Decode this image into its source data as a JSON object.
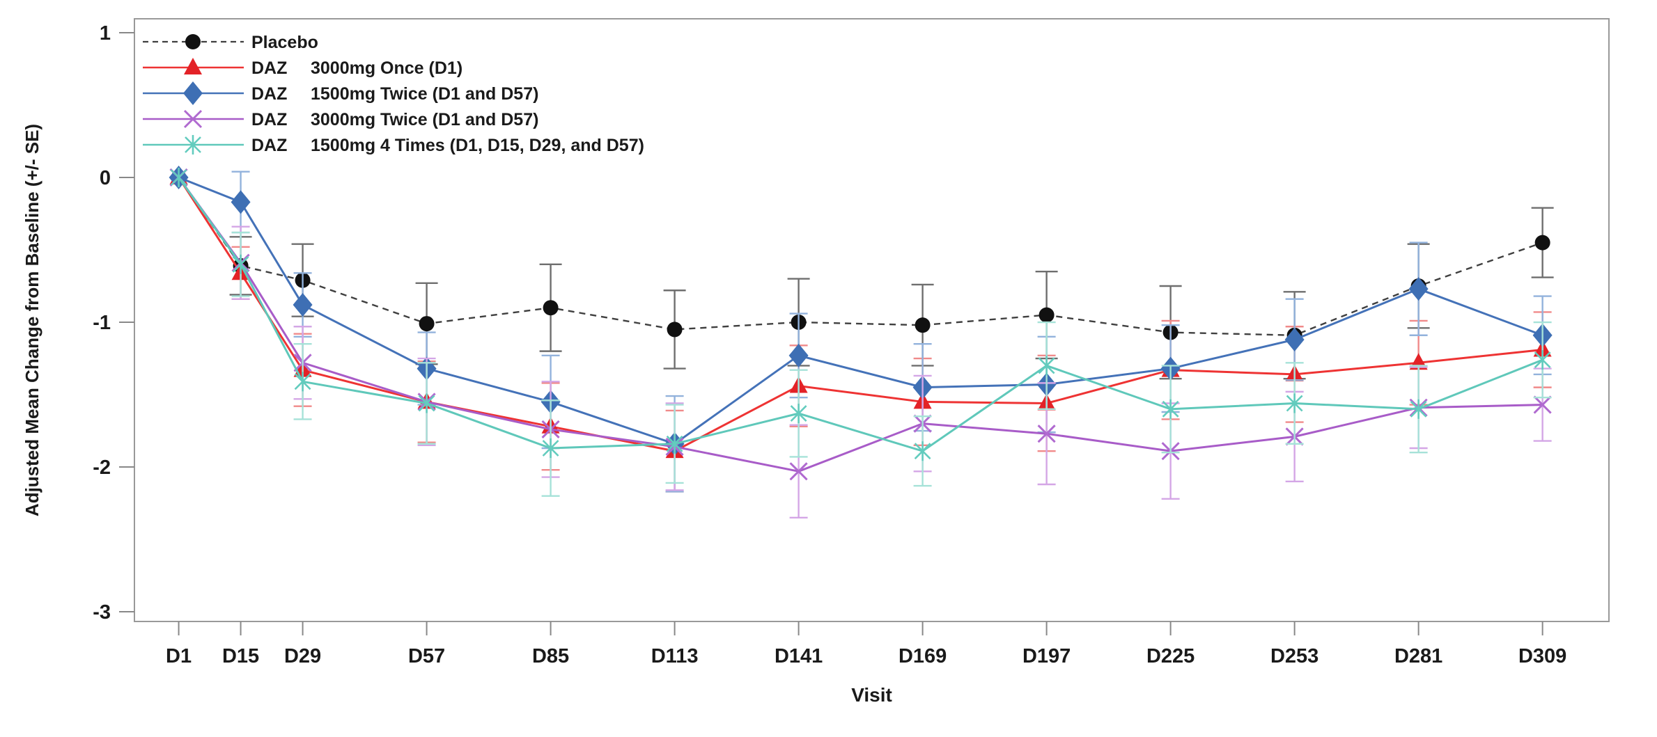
{
  "chart_data": {
    "type": "line",
    "title": "",
    "xlabel": "Visit",
    "ylabel": "Adjusted Mean Change from Baseline (+/- SE)",
    "error_bars": "+/- SE",
    "grid": false,
    "legend_position": "top-left-inside",
    "x_categories": [
      "D1",
      "D15",
      "D29",
      "D57",
      "D85",
      "D113",
      "D141",
      "D169",
      "D197",
      "D225",
      "D253",
      "D281",
      "D309"
    ],
    "x_days": [
      1,
      15,
      29,
      57,
      85,
      113,
      141,
      169,
      197,
      225,
      253,
      281,
      309
    ],
    "yticks": [
      1,
      0,
      -1,
      -2,
      -3
    ],
    "ylim": [
      -3.07,
      1.1
    ],
    "series": [
      {
        "name": "Placebo",
        "legend_col1": "Placebo",
        "legend_col2": "",
        "marker": "circle",
        "line_style": "dashed",
        "line_color": "#3f3f3f",
        "marker_color": "#111111",
        "error_color": "#6e6e6e",
        "values": [
          0.0,
          -0.61,
          -0.71,
          -1.01,
          -0.9,
          -1.05,
          -1.0,
          -1.02,
          -0.95,
          -1.07,
          -1.09,
          -0.75,
          -0.45
        ],
        "se": [
          0.0,
          0.2,
          0.25,
          0.28,
          0.3,
          0.27,
          0.3,
          0.28,
          0.3,
          0.32,
          0.3,
          0.29,
          0.24
        ]
      },
      {
        "name": "DAZ 3000mg Once (D1)",
        "legend_col1": "DAZ",
        "legend_col2": "3000mg Once (D1)",
        "marker": "triangle",
        "line_style": "solid",
        "line_color": "#ee3333",
        "marker_color": "#e32227",
        "error_color": "#f08a8a",
        "values": [
          0.0,
          -0.66,
          -1.33,
          -1.55,
          -1.72,
          -1.89,
          -1.44,
          -1.55,
          -1.56,
          -1.33,
          -1.36,
          -1.28,
          -1.19
        ],
        "se": [
          0.0,
          0.18,
          0.25,
          0.28,
          0.3,
          0.28,
          0.28,
          0.3,
          0.33,
          0.34,
          0.33,
          0.29,
          0.26
        ]
      },
      {
        "name": "DAZ 1500mg Twice (D1 and D57)",
        "legend_col1": "DAZ",
        "legend_col2": "1500mg Twice (D1 and D57)",
        "marker": "diamond",
        "line_style": "solid",
        "line_color": "#4472b8",
        "marker_color": "#3e6fb4",
        "error_color": "#92b2dc",
        "values": [
          0.0,
          -0.17,
          -0.88,
          -1.32,
          -1.55,
          -1.84,
          -1.23,
          -1.45,
          -1.43,
          -1.32,
          -1.12,
          -0.77,
          -1.09
        ],
        "se": [
          0.0,
          0.21,
          0.22,
          0.25,
          0.32,
          0.33,
          0.29,
          0.3,
          0.33,
          0.3,
          0.28,
          0.32,
          0.27
        ]
      },
      {
        "name": "DAZ 3000mg Twice (D1 and D57)",
        "legend_col1": "DAZ",
        "legend_col2": "3000mg Twice (D1 and D57)",
        "marker": "x",
        "line_style": "solid",
        "line_color": "#a85cc8",
        "marker_color": "#b06ad0",
        "error_color": "#d4a6e6",
        "values": [
          0.0,
          -0.59,
          -1.28,
          -1.55,
          -1.74,
          -1.86,
          -2.03,
          -1.7,
          -1.77,
          -1.89,
          -1.79,
          -1.59,
          -1.57
        ],
        "se": [
          0.0,
          0.25,
          0.25,
          0.3,
          0.33,
          0.3,
          0.32,
          0.33,
          0.35,
          0.33,
          0.31,
          0.28,
          0.25
        ]
      },
      {
        "name": "DAZ 1500mg 4 Times (D1, D15, D29, and D57)",
        "legend_col1": "DAZ",
        "legend_col2": "1500mg 4 Times (D1, D15, D29, and D57)",
        "marker": "asterisk",
        "line_style": "solid",
        "line_color": "#5fc8ba",
        "marker_color": "#63ccbe",
        "error_color": "#a6e2d8",
        "values": [
          0.0,
          -0.6,
          -1.41,
          -1.56,
          -1.87,
          -1.84,
          -1.63,
          -1.89,
          -1.3,
          -1.6,
          -1.56,
          -1.6,
          -1.26
        ],
        "se": [
          0.0,
          0.22,
          0.26,
          0.28,
          0.33,
          0.27,
          0.3,
          0.24,
          0.3,
          0.3,
          0.28,
          0.3,
          0.26
        ]
      }
    ]
  }
}
